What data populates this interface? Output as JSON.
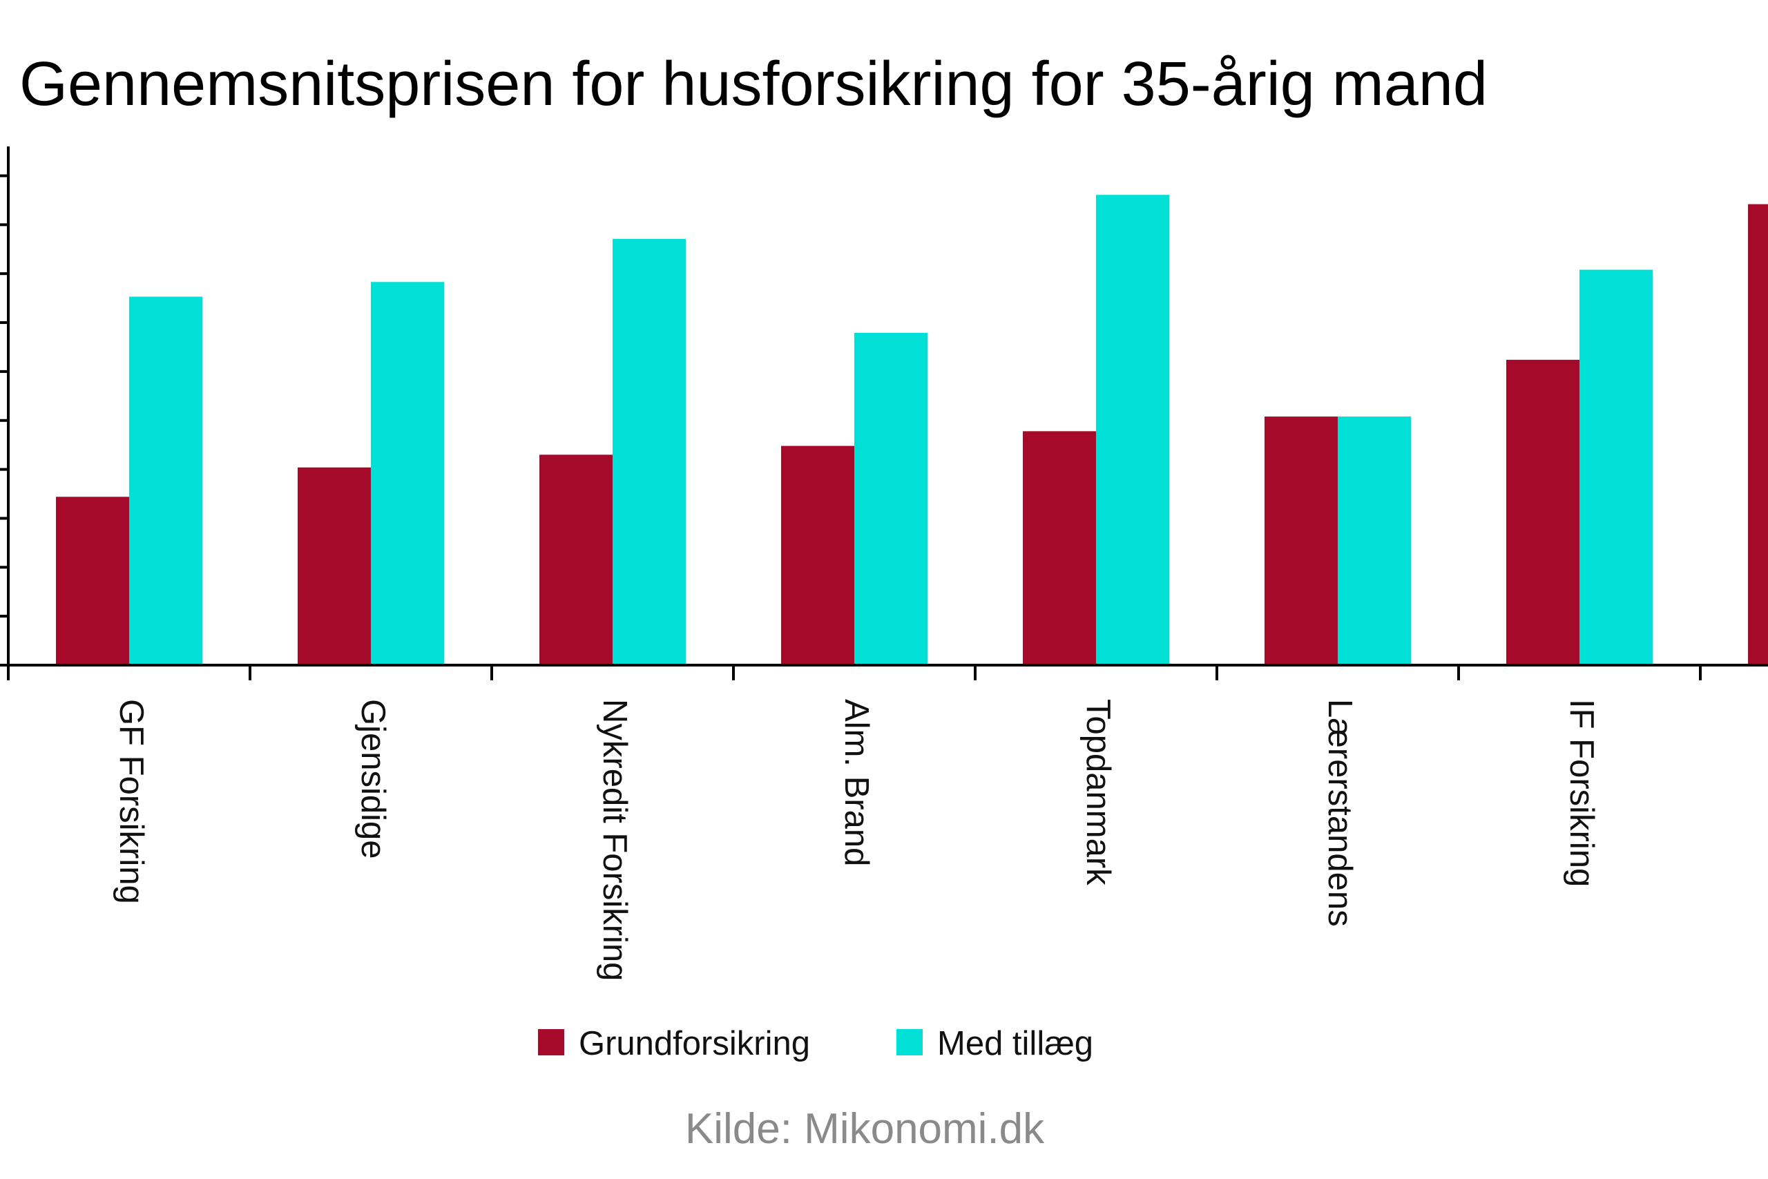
{
  "chart_data": {
    "type": "bar",
    "title": "Gennemsnitsprisen for husforsikring for 35-årig mand",
    "xlabel": "",
    "ylabel": "",
    "ylim": [
      0,
      10.6
    ],
    "y_ticks": [
      0,
      1,
      2,
      3,
      4,
      5,
      6,
      7,
      8,
      9,
      10
    ],
    "y_tick_labels_visible": false,
    "grid": false,
    "legend_position": "bottom",
    "categories": [
      "GF Forsikring",
      "Gjensidige",
      "Nykredit Forsikring",
      "Alm. Brand",
      "Topdanmark",
      "Lærerstandens",
      "IF Forsikring",
      null
    ],
    "series": [
      {
        "name": "Grundforsikring",
        "color": "#a50a2a",
        "values": [
          3.44,
          4.04,
          4.3,
          4.48,
          4.78,
          5.08,
          6.24,
          9.42
        ]
      },
      {
        "name": "Med tillæg",
        "color": "#00e0d6",
        "values": [
          7.53,
          7.83,
          8.71,
          6.79,
          9.61,
          5.08,
          8.08,
          null
        ]
      }
    ],
    "source": "Kilde: Mikonomi.dk"
  }
}
